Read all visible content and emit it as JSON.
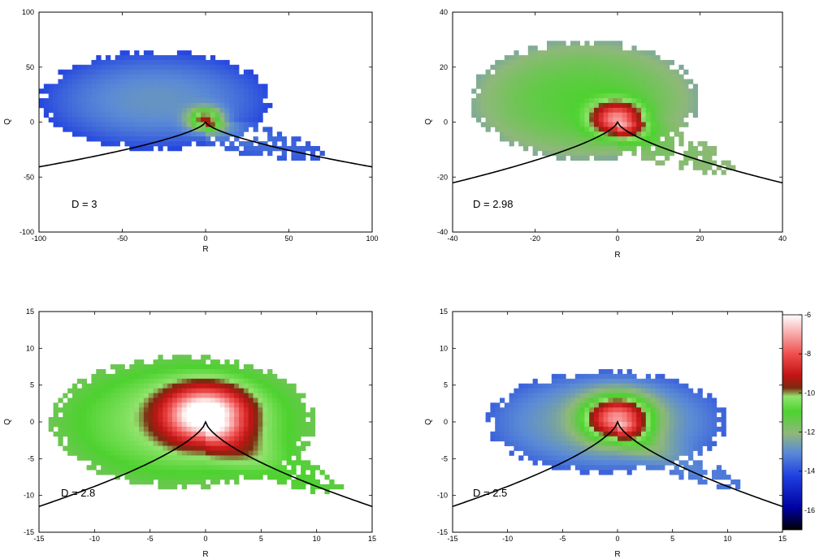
{
  "chart_data": [
    {
      "type": "heatmap",
      "xlabel": "R",
      "ylabel": "Q",
      "xlim": [
        -100,
        100
      ],
      "ylim": [
        -100,
        100
      ],
      "xticks": [
        "-100",
        "-50",
        "0",
        "50",
        "100"
      ],
      "yticks": [
        "-100",
        "-50",
        "0",
        "50",
        "100"
      ],
      "annotation": "D = 3",
      "grid": false,
      "curve": "Q = -(27/4 R^2)^(1/3)"
    },
    {
      "type": "heatmap",
      "xlabel": "R",
      "ylabel": "Q",
      "xlim": [
        -40,
        40
      ],
      "ylim": [
        -40,
        40
      ],
      "xticks": [
        "-40",
        "-20",
        "0",
        "20",
        "40"
      ],
      "yticks": [
        "-40",
        "-20",
        "0",
        "20",
        "40"
      ],
      "annotation": "D = 2.98",
      "grid": false,
      "curve": "Q = -(27/4 R^2)^(1/3)"
    },
    {
      "type": "heatmap",
      "xlabel": "R",
      "ylabel": "Q",
      "xlim": [
        -15,
        15
      ],
      "ylim": [
        -15,
        15
      ],
      "xticks": [
        "-15",
        "-10",
        "-5",
        "0",
        "5",
        "10",
        "15"
      ],
      "yticks": [
        "-15",
        "-10",
        "-5",
        "0",
        "5",
        "10",
        "15"
      ],
      "annotation": "D = 2.8",
      "grid": false,
      "curve": "Q = -(27/4 R^2)^(1/3)"
    },
    {
      "type": "heatmap",
      "xlabel": "R",
      "ylabel": "Q",
      "xlim": [
        -15,
        15
      ],
      "ylim": [
        -15,
        15
      ],
      "xticks": [
        "-15",
        "-10",
        "-5",
        "0",
        "5",
        "10",
        "15"
      ],
      "yticks": [
        "-15",
        "-10",
        "-5",
        "0",
        "5",
        "10",
        "15"
      ],
      "annotation": "D = 2.5",
      "grid": false,
      "curve": "Q = -(27/4 R^2)^(1/3)"
    }
  ],
  "colorbar": {
    "ticks": [
      "-6",
      "-8",
      "-10",
      "-12",
      "-14",
      "-16"
    ],
    "range": [
      -17,
      -6
    ],
    "colors": [
      "#000000",
      "#0000a0",
      "#1f3fe0",
      "#5b86d8",
      "#4dd22f",
      "#7fe36a",
      "#8a2a10",
      "#e01010",
      "#ffffff"
    ]
  }
}
